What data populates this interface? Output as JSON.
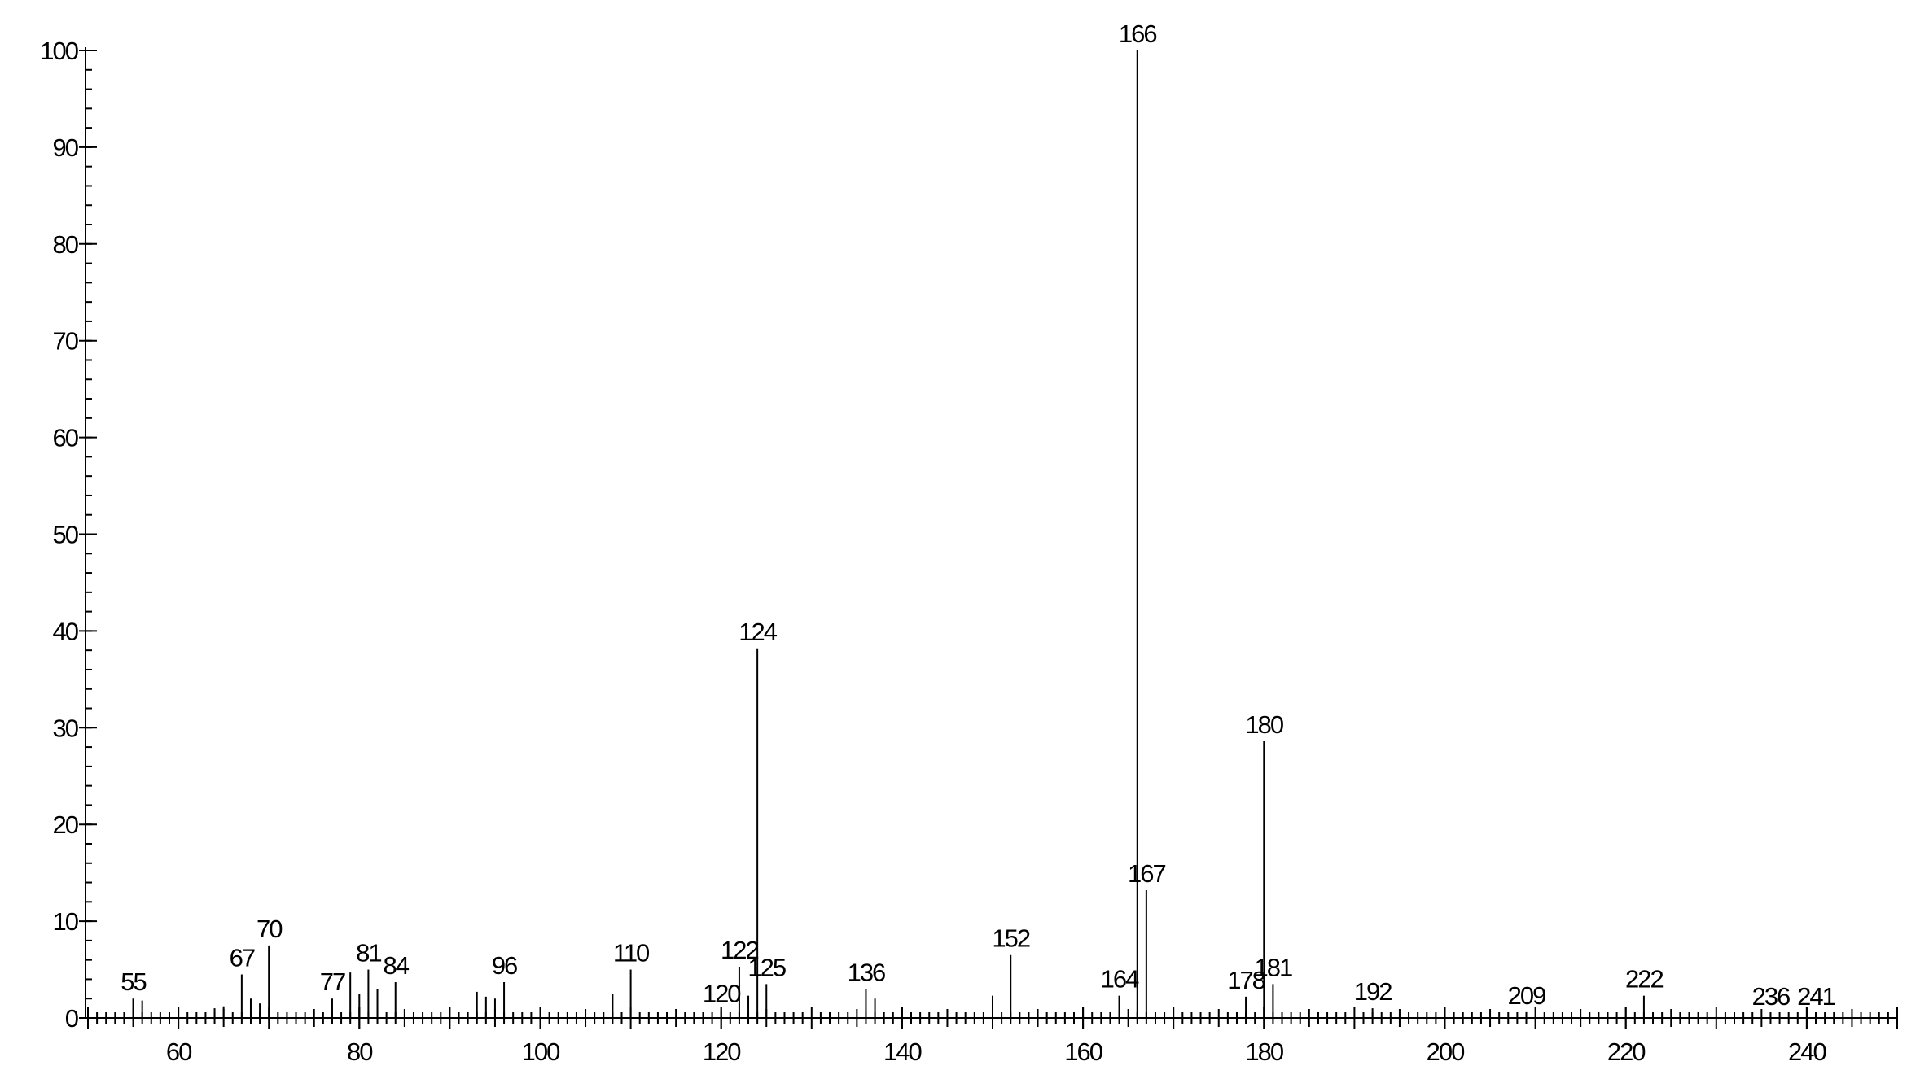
{
  "chart_data": {
    "type": "stem",
    "x": [
      55,
      56,
      64,
      65,
      67,
      68,
      69,
      70,
      77,
      79,
      80,
      81,
      82,
      84,
      93,
      94,
      95,
      96,
      108,
      110,
      120,
      122,
      123,
      124,
      125,
      136,
      137,
      150,
      152,
      164,
      166,
      167,
      178,
      180,
      181,
      192,
      209,
      222,
      236,
      241
    ],
    "values": [
      2,
      1.8,
      1,
      1.2,
      4.5,
      2,
      1.5,
      7.5,
      2,
      4.7,
      2.5,
      5,
      3,
      3.7,
      2.7,
      2.2,
      2,
      3.7,
      2.5,
      5,
      0.8,
      5.3,
      2.3,
      38.2,
      3.5,
      3,
      2,
      2.3,
      6.5,
      2.3,
      100,
      13.2,
      2.2,
      28.6,
      3.5,
      1,
      0.6,
      2.3,
      0.5,
      0.5
    ],
    "labels": [
      55,
      null,
      null,
      null,
      67,
      null,
      null,
      70,
      77,
      null,
      null,
      81,
      null,
      84,
      null,
      null,
      null,
      96,
      null,
      110,
      120,
      122,
      null,
      124,
      125,
      136,
      null,
      null,
      152,
      164,
      166,
      167,
      178,
      180,
      181,
      192,
      209,
      222,
      236,
      241
    ],
    "color": "#000000",
    "xlim": [
      50,
      250
    ],
    "xticks": [
      60,
      80,
      100,
      120,
      140,
      160,
      180,
      200,
      220,
      240
    ],
    "xminor": 1,
    "ylim": [
      0,
      100
    ],
    "yticks": [
      0,
      10,
      20,
      30,
      40,
      50,
      60,
      70,
      80,
      90,
      100
    ],
    "yminor": 2
  }
}
